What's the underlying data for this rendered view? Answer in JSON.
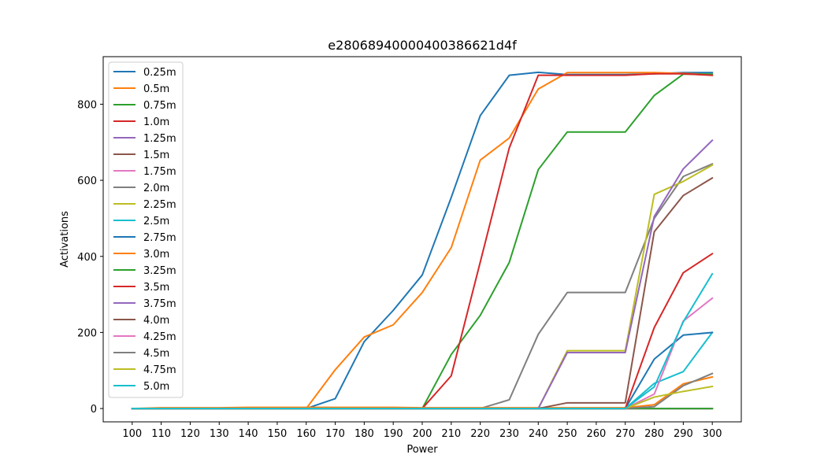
{
  "chart_data": {
    "type": "line",
    "title": "e2806894000040038662​1d4f",
    "xlabel": "Power",
    "ylabel": "Activations",
    "x": [
      100,
      110,
      120,
      130,
      140,
      150,
      160,
      170,
      180,
      190,
      200,
      210,
      220,
      230,
      240,
      250,
      260,
      270,
      280,
      290,
      300
    ],
    "ylim": [
      -35,
      925
    ],
    "yticks": [
      0,
      200,
      400,
      600,
      800
    ],
    "grid": false,
    "legend_position": "top-left",
    "series": [
      {
        "name": "0.25m",
        "color": "#1f77b4",
        "values": [
          0,
          0,
          0,
          0,
          0,
          0,
          0,
          26,
          176,
          258,
          351,
          555,
          770,
          876,
          884,
          878,
          878,
          878,
          880,
          883,
          883
        ]
      },
      {
        "name": "0.5m",
        "color": "#ff7f0e",
        "values": [
          0,
          0,
          0,
          0,
          0,
          0,
          0,
          102,
          188,
          220,
          305,
          423,
          653,
          711,
          840,
          883,
          883,
          883,
          883,
          881,
          878
        ]
      },
      {
        "name": "0.75m",
        "color": "#2ca02c",
        "values": [
          0,
          0,
          0,
          0,
          0,
          0,
          0,
          0,
          0,
          0,
          0,
          142,
          245,
          384,
          628,
          727,
          727,
          727,
          823,
          879,
          879
        ]
      },
      {
        "name": "1.0m",
        "color": "#d62728",
        "values": [
          0,
          0,
          0,
          0,
          0,
          0,
          0,
          0,
          0,
          0,
          0,
          86,
          385,
          685,
          876,
          876,
          876,
          876,
          880,
          880,
          876
        ]
      },
      {
        "name": "1.25m",
        "color": "#9467bd",
        "values": [
          0,
          0,
          0,
          0,
          0,
          0,
          0,
          0,
          0,
          0,
          0,
          0,
          0,
          0,
          0,
          0,
          0,
          0,
          0,
          0,
          0
        ]
      },
      {
        "name": "1.5m",
        "color": "#8c564b",
        "values": [
          0,
          0,
          0,
          0,
          0,
          0,
          0,
          0,
          0,
          0,
          0,
          0,
          0,
          0,
          0,
          0,
          0,
          0,
          0,
          0,
          0
        ]
      },
      {
        "name": "1.75m",
        "color": "#e377c2",
        "values": [
          0,
          0,
          0,
          0,
          0,
          0,
          0,
          0,
          0,
          0,
          0,
          0,
          0,
          0,
          0,
          0,
          0,
          0,
          0,
          0,
          0
        ]
      },
      {
        "name": "2.0m",
        "color": "#7f7f7f",
        "values": [
          0,
          0,
          0,
          0,
          0,
          0,
          0,
          0,
          0,
          0,
          0,
          0,
          0,
          23,
          195,
          305,
          305,
          305,
          500,
          610,
          643
        ]
      },
      {
        "name": "2.25m",
        "color": "#bcbd22",
        "values": [
          0,
          0,
          0,
          0,
          0,
          0,
          0,
          0,
          0,
          0,
          0,
          0,
          0,
          0,
          0,
          152,
          152,
          152,
          563,
          597,
          640
        ]
      },
      {
        "name": "2.5m",
        "color": "#17becf",
        "values": [
          0,
          0,
          0,
          0,
          0,
          0,
          0,
          0,
          0,
          0,
          0,
          0,
          0,
          0,
          0,
          0,
          0,
          0,
          66,
          97,
          200
        ]
      },
      {
        "name": "2.75m",
        "color": "#1f77b4",
        "values": [
          0,
          0,
          0,
          0,
          0,
          0,
          0,
          0,
          0,
          0,
          0,
          0,
          0,
          0,
          0,
          0,
          0,
          0,
          130,
          193,
          200
        ]
      },
      {
        "name": "3.0m",
        "color": "#ff7f0e",
        "values": [
          0,
          2,
          2,
          2,
          3,
          3,
          3,
          3,
          3,
          3,
          2,
          2,
          2,
          2,
          2,
          2,
          2,
          2,
          10,
          65,
          83
        ]
      },
      {
        "name": "3.25m",
        "color": "#2ca02c",
        "values": [
          0,
          0,
          0,
          0,
          0,
          0,
          0,
          0,
          0,
          0,
          0,
          0,
          0,
          0,
          0,
          0,
          0,
          0,
          0,
          0,
          0
        ]
      },
      {
        "name": "3.5m",
        "color": "#d62728",
        "values": [
          0,
          0,
          0,
          0,
          0,
          0,
          0,
          0,
          0,
          0,
          0,
          0,
          0,
          0,
          0,
          0,
          0,
          0,
          213,
          357,
          407
        ]
      },
      {
        "name": "3.75m",
        "color": "#9467bd",
        "values": [
          0,
          0,
          0,
          0,
          0,
          0,
          0,
          0,
          0,
          0,
          0,
          0,
          0,
          0,
          0,
          147,
          147,
          147,
          505,
          630,
          705
        ]
      },
      {
        "name": "4.0m",
        "color": "#8c564b",
        "values": [
          0,
          0,
          0,
          0,
          0,
          0,
          0,
          0,
          0,
          0,
          0,
          0,
          0,
          0,
          0,
          15,
          15,
          15,
          465,
          560,
          606
        ]
      },
      {
        "name": "4.25m",
        "color": "#e377c2",
        "values": [
          0,
          0,
          0,
          0,
          0,
          0,
          0,
          0,
          0,
          0,
          0,
          0,
          0,
          0,
          0,
          0,
          0,
          0,
          38,
          230,
          290
        ]
      },
      {
        "name": "4.5m",
        "color": "#7f7f7f",
        "values": [
          0,
          0,
          0,
          0,
          0,
          0,
          0,
          0,
          0,
          0,
          0,
          0,
          0,
          0,
          0,
          0,
          0,
          0,
          5,
          60,
          92
        ]
      },
      {
        "name": "4.75m",
        "color": "#bcbd22",
        "values": [
          0,
          0,
          0,
          0,
          0,
          0,
          0,
          0,
          0,
          0,
          0,
          0,
          0,
          0,
          0,
          0,
          0,
          0,
          30,
          45,
          58
        ]
      },
      {
        "name": "5.0m",
        "color": "#17becf",
        "values": [
          0,
          0,
          0,
          0,
          0,
          0,
          0,
          0,
          0,
          0,
          0,
          0,
          0,
          0,
          0,
          0,
          0,
          0,
          57,
          228,
          354
        ]
      }
    ]
  }
}
